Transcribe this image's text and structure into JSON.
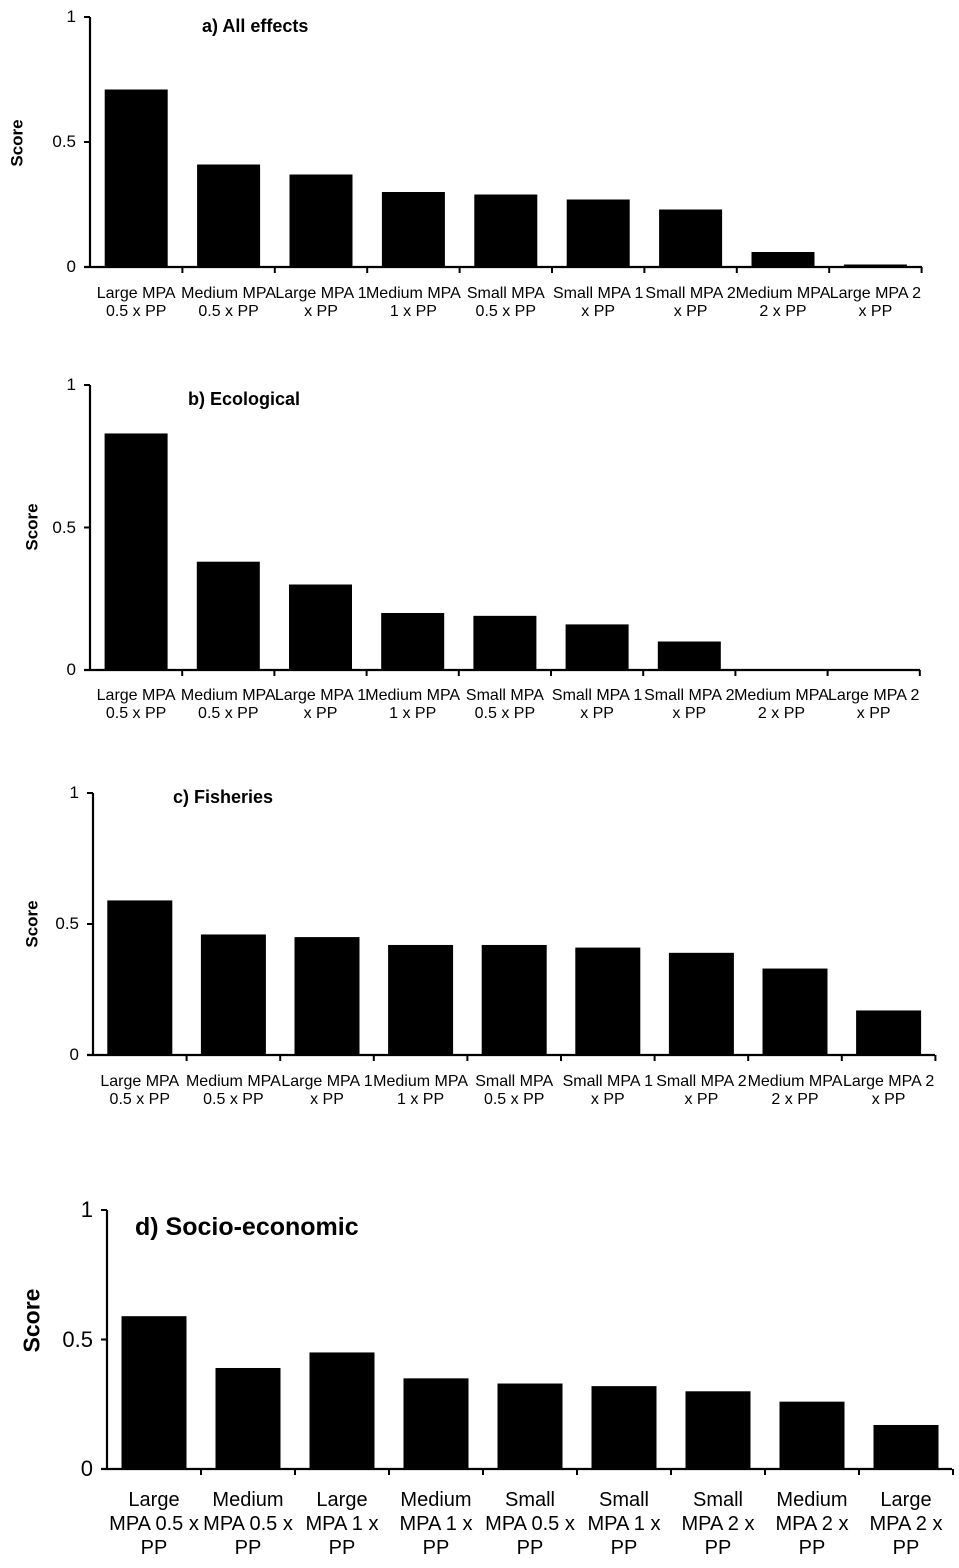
{
  "chart_data": [
    {
      "type": "bar",
      "title": "a) All effects",
      "ylabel": "Score",
      "ylim": [
        0,
        1
      ],
      "yticks": [
        "0",
        "0.5",
        "1"
      ],
      "categories": [
        "Large MPA 0.5 x PP",
        "Medium MPA 0.5 x PP",
        "Large MPA 1 x PP",
        "Medium MPA 1 x PP",
        "Small MPA 0.5 x PP",
        "Small MPA 1 x PP",
        "Small MPA 2 x PP",
        "Medium MPA 2 x PP",
        "Large MPA 2 x PP"
      ],
      "values": [
        0.71,
        0.41,
        0.37,
        0.3,
        0.29,
        0.27,
        0.23,
        0.06,
        0.01
      ],
      "grid": false,
      "bar_color": "#000000"
    },
    {
      "type": "bar",
      "title": "b) Ecological",
      "ylabel": "Score",
      "ylim": [
        0,
        1
      ],
      "yticks": [
        "0",
        "0.5",
        "1"
      ],
      "categories": [
        "Large MPA 0.5 x PP",
        "Medium MPA 0.5 x PP",
        "Large MPA 1 x PP",
        "Medium MPA 1 x PP",
        "Small MPA 0.5 x PP",
        "Small MPA 1 x PP",
        "Small MPA 2 x PP",
        "Medium MPA 2 x PP",
        "Large MPA 2 x PP"
      ],
      "values": [
        0.83,
        0.38,
        0.3,
        0.2,
        0.19,
        0.16,
        0.1,
        0.0,
        0.0
      ],
      "grid": false,
      "bar_color": "#000000"
    },
    {
      "type": "bar",
      "title": "c) Fisheries",
      "ylabel": "Score",
      "ylim": [
        0,
        1
      ],
      "yticks": [
        "0",
        "0.5",
        "1"
      ],
      "categories": [
        "Large MPA 0.5 x PP",
        "Medium MPA 0.5 x PP",
        "Large MPA 1 x PP",
        "Medium MPA 1 x PP",
        "Small MPA 0.5 x PP",
        "Small MPA 1 x PP",
        "Small MPA 2 x PP",
        "Medium MPA 2 x PP",
        "Large MPA 2 x PP"
      ],
      "values": [
        0.59,
        0.46,
        0.45,
        0.42,
        0.42,
        0.41,
        0.39,
        0.33,
        0.17
      ],
      "grid": false,
      "bar_color": "#000000"
    },
    {
      "type": "bar",
      "title": "d) Socio-economic",
      "ylabel": "Score",
      "ylim": [
        0,
        1
      ],
      "yticks": [
        "0",
        "0.5",
        "1"
      ],
      "categories": [
        "Large MPA 0.5 x PP",
        "Medium MPA 0.5 x PP",
        "Large MPA 1 x PP",
        "Medium MPA 1 x PP",
        "Small MPA 0.5 x PP",
        "Small MPA 1 x PP",
        "Small MPA 2 x PP",
        "Medium MPA 2 x PP",
        "Large MPA 2 x PP"
      ],
      "values": [
        0.59,
        0.39,
        0.45,
        0.35,
        0.33,
        0.32,
        0.3,
        0.26,
        0.17
      ],
      "grid": false,
      "bar_color": "#000000"
    }
  ]
}
